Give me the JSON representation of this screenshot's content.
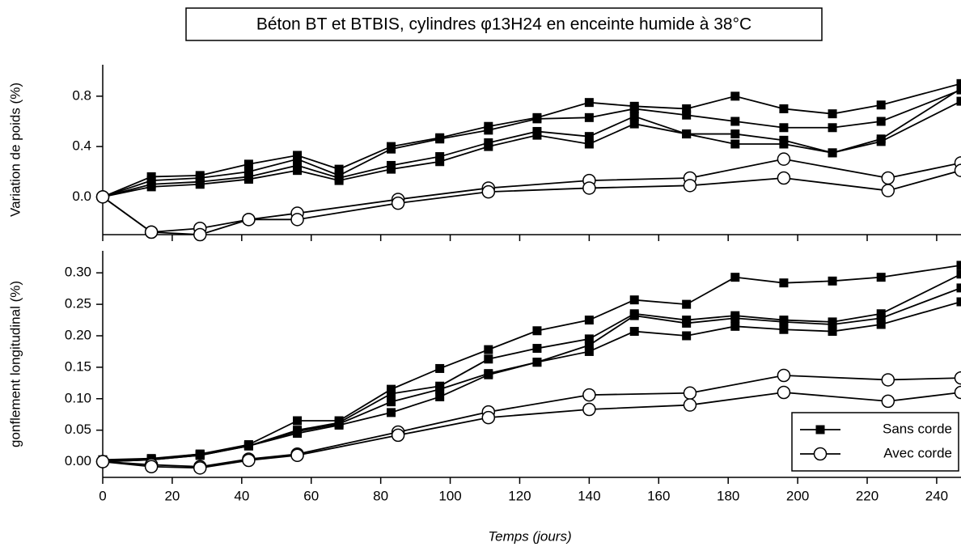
{
  "chart_data": [
    {
      "type": "line",
      "title": "Béton BT et BTBIS, cylindres φ13H24  en enceinte humide à 38°C",
      "ylabel": "Variation de poids (%)",
      "xlim": [
        0,
        247
      ],
      "ylim": [
        -0.3,
        1.05
      ],
      "yticks": [
        {
          "value": 0,
          "label": "0.0"
        },
        0.4,
        0.8
      ],
      "series": [
        {
          "marker": "square",
          "color": "#000000",
          "x": [
            0,
            14,
            28,
            42,
            56,
            68,
            83,
            97,
            111,
            125,
            140,
            153,
            168,
            182,
            196,
            210,
            224,
            247
          ],
          "values": [
            0,
            0.16,
            0.17,
            0.26,
            0.33,
            0.22,
            0.4,
            0.47,
            0.56,
            0.63,
            0.75,
            0.72,
            0.7,
            0.8,
            0.7,
            0.66,
            0.73,
            0.9
          ]
        },
        {
          "marker": "square",
          "color": "#000000",
          "x": [
            0,
            14,
            28,
            42,
            56,
            68,
            83,
            97,
            111,
            125,
            140,
            153,
            168,
            182,
            196,
            210,
            224,
            247
          ],
          "values": [
            0,
            0.13,
            0.15,
            0.2,
            0.3,
            0.17,
            0.38,
            0.46,
            0.53,
            0.62,
            0.63,
            0.7,
            0.65,
            0.6,
            0.55,
            0.55,
            0.6,
            0.85
          ]
        },
        {
          "marker": "square",
          "color": "#000000",
          "x": [
            0,
            14,
            28,
            42,
            56,
            68,
            83,
            97,
            111,
            125,
            140,
            153,
            168,
            182,
            196,
            210,
            224,
            247
          ],
          "values": [
            0,
            0.1,
            0.12,
            0.16,
            0.25,
            0.15,
            0.25,
            0.32,
            0.43,
            0.52,
            0.48,
            0.64,
            0.5,
            0.5,
            0.45,
            0.35,
            0.46,
            0.86
          ]
        },
        {
          "marker": "square",
          "color": "#000000",
          "x": [
            0,
            14,
            28,
            42,
            56,
            68,
            83,
            97,
            111,
            125,
            140,
            153,
            168,
            182,
            196,
            210,
            224,
            247
          ],
          "values": [
            0,
            0.08,
            0.1,
            0.14,
            0.21,
            0.13,
            0.22,
            0.28,
            0.4,
            0.49,
            0.42,
            0.58,
            0.5,
            0.42,
            0.42,
            0.35,
            0.44,
            0.76
          ]
        },
        {
          "marker": "circle",
          "color": "#000000",
          "x": [
            0,
            14,
            28,
            42,
            56,
            85,
            111,
            140,
            169,
            196,
            226,
            247
          ],
          "values": [
            0,
            -0.28,
            -0.25,
            -0.18,
            -0.13,
            -0.02,
            0.07,
            0.13,
            0.15,
            0.3,
            0.15,
            0.27
          ]
        },
        {
          "marker": "circle",
          "color": "#000000",
          "x": [
            0,
            14,
            28,
            42,
            56,
            85,
            111,
            140,
            169,
            196,
            226,
            247
          ],
          "values": [
            0,
            -0.28,
            -0.3,
            -0.18,
            -0.18,
            -0.05,
            0.04,
            0.07,
            0.09,
            0.15,
            0.05,
            0.21
          ]
        }
      ]
    },
    {
      "type": "line",
      "xlabel": "Temps (jours)",
      "ylabel": "gonflement longitudinal (%)",
      "xlim": [
        0,
        247
      ],
      "ylim": [
        -0.025,
        0.335
      ],
      "xticks": [
        0,
        20,
        40,
        60,
        80,
        100,
        120,
        140,
        160,
        180,
        200,
        220,
        240
      ],
      "yticks": [
        {
          "value": 0,
          "label": "0.00"
        },
        {
          "value": 0.05,
          "label": "0.05"
        },
        {
          "value": 0.1,
          "label": "0.10"
        },
        {
          "value": 0.15,
          "label": "0.15"
        },
        {
          "value": 0.2,
          "label": "0.20"
        },
        {
          "value": 0.25,
          "label": "0.25"
        },
        {
          "value": 0.3,
          "label": "0.30"
        }
      ],
      "legend": "bottom-right",
      "series": [
        {
          "name": "Sans corde",
          "marker": "square",
          "color": "#000000",
          "x": [
            0,
            14,
            28,
            42,
            56,
            68,
            83,
            97,
            111,
            125,
            140,
            153,
            168,
            182,
            196,
            210,
            224,
            247
          ],
          "values": [
            0.003,
            0.005,
            0.012,
            0.027,
            0.065,
            0.065,
            0.115,
            0.148,
            0.178,
            0.208,
            0.225,
            0.257,
            0.25,
            0.293,
            0.284,
            0.287,
            0.293,
            0.312
          ]
        },
        {
          "marker": "square",
          "color": "#000000",
          "x": [
            0,
            14,
            28,
            42,
            56,
            68,
            83,
            97,
            111,
            125,
            140,
            153,
            168,
            182,
            196,
            210,
            224,
            247
          ],
          "values": [
            0.002,
            0.004,
            0.012,
            0.025,
            0.05,
            0.062,
            0.108,
            0.12,
            0.163,
            0.18,
            0.195,
            0.235,
            0.225,
            0.232,
            0.225,
            0.222,
            0.235,
            0.298
          ]
        },
        {
          "marker": "square",
          "color": "#000000",
          "x": [
            0,
            14,
            28,
            42,
            56,
            68,
            83,
            97,
            111,
            125,
            140,
            153,
            168,
            182,
            196,
            210,
            224,
            247
          ],
          "values": [
            0,
            0.003,
            0.01,
            0.025,
            0.048,
            0.06,
            0.095,
            0.115,
            0.14,
            0.158,
            0.185,
            0.232,
            0.22,
            0.228,
            0.222,
            0.218,
            0.228,
            0.276
          ]
        },
        {
          "marker": "square",
          "color": "#000000",
          "x": [
            0,
            14,
            28,
            42,
            56,
            68,
            83,
            97,
            111,
            125,
            140,
            153,
            168,
            182,
            196,
            210,
            224,
            247
          ],
          "values": [
            0,
            0.003,
            0.01,
            0.025,
            0.045,
            0.058,
            0.078,
            0.103,
            0.138,
            0.158,
            0.175,
            0.207,
            0.2,
            0.215,
            0.21,
            0.207,
            0.218,
            0.254
          ]
        },
        {
          "name": "Avec corde",
          "marker": "circle",
          "color": "#000000",
          "x": [
            0,
            14,
            28,
            42,
            56,
            85,
            111,
            140,
            169,
            196,
            226,
            247
          ],
          "values": [
            0,
            -0.005,
            -0.008,
            0.004,
            0.012,
            0.047,
            0.079,
            0.106,
            0.109,
            0.137,
            0.13,
            0.133
          ]
        },
        {
          "marker": "circle",
          "color": "#000000",
          "x": [
            0,
            14,
            28,
            42,
            56,
            85,
            111,
            140,
            169,
            196,
            226,
            247
          ],
          "values": [
            0,
            -0.008,
            -0.01,
            0.002,
            0.01,
            0.042,
            0.07,
            0.083,
            0.09,
            0.11,
            0.096,
            0.11
          ]
        }
      ]
    }
  ]
}
